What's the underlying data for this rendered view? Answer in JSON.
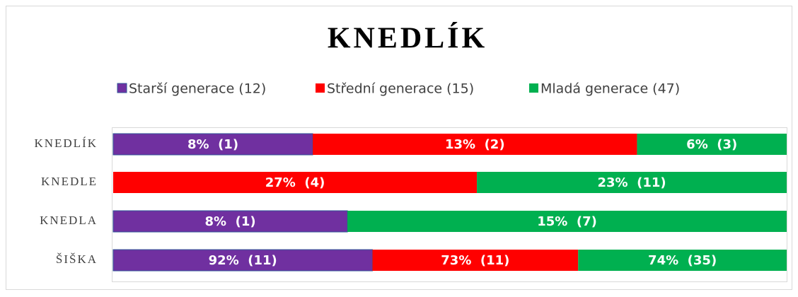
{
  "chart_data": {
    "type": "bar",
    "orientation": "horizontal",
    "stacked": "percent",
    "title": "KNEDLÍK",
    "categories": [
      "KNEDLÍK",
      "KNEDLE",
      "KNEDLA",
      "ŠIŠKA"
    ],
    "legend": "top",
    "series": [
      {
        "name": "Starší generace (12)",
        "color": "#7030a0",
        "values": [
          8,
          null,
          8,
          92
        ],
        "value_labels": [
          "8%  (1)",
          null,
          "8%  (1)",
          "92%  (11)"
        ]
      },
      {
        "name": "Střední generace (15)",
        "color": "#ff0000",
        "values": [
          13,
          27,
          null,
          73
        ],
        "value_labels": [
          "13%  (2)",
          "27%  (4)",
          null,
          "73%  (11)"
        ]
      },
      {
        "name": "Mladá generace (47)",
        "color": "#00b050",
        "values": [
          6,
          23,
          15,
          74
        ],
        "value_labels": [
          "6%  (3)",
          "23%  (11)",
          "15%  (7)",
          "74%  (35)"
        ]
      }
    ]
  }
}
